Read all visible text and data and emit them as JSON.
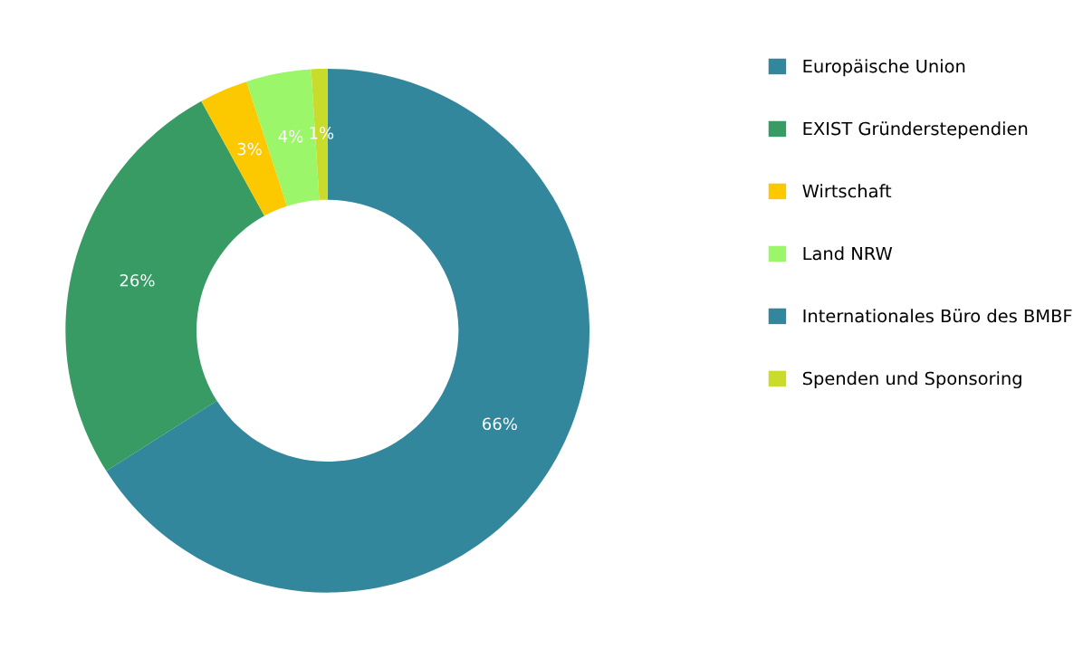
{
  "chart_data": {
    "type": "donut",
    "categories": [
      "Europäische Union",
      "EXIST Gründerstependien",
      "Wirtschaft",
      "Land NRW",
      "Internationales Büro des BMBF",
      "Spenden und Sponsoring"
    ],
    "values": [
      66,
      26,
      3,
      4,
      0,
      1
    ],
    "value_labels": [
      "66%",
      "26%",
      "3%",
      "4%",
      null,
      "1%"
    ],
    "colors": [
      "#32879c",
      "#379b63",
      "#fcc800",
      "#9bf769",
      "#32879c",
      "#c9dc2c"
    ],
    "legend": "right"
  }
}
